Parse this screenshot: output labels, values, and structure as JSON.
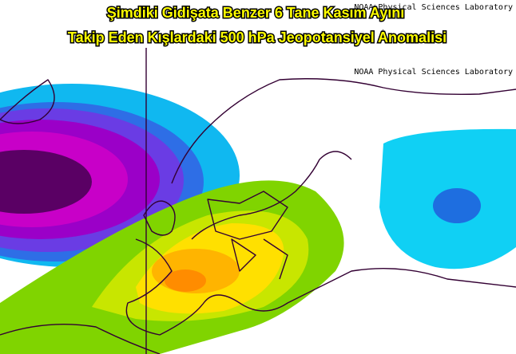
{
  "header": {
    "title_lines": [
      "Şimdiki Gidişata Benzer 6 Tane Kasım Ayını",
      "Takip Eden Kışlardaki 500 hPa Jeopotansiyel Anomalisi"
    ]
  },
  "credits": [
    "NOAA Physical Sciences Laboratory",
    "NOAA Physical Sciences Laboratory"
  ]
}
